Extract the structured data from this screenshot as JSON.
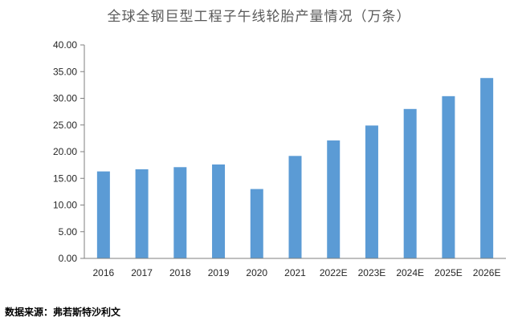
{
  "chart_data": {
    "type": "bar",
    "title": "全球全钢巨型工程子午线轮胎产量情况（万条）",
    "categories": [
      "2016",
      "2017",
      "2018",
      "2019",
      "2020",
      "2021",
      "2022E",
      "2023E",
      "2024E",
      "2025E",
      "2026E"
    ],
    "values": [
      16.3,
      16.7,
      17.1,
      17.6,
      13.0,
      19.2,
      22.1,
      24.9,
      28.0,
      30.4,
      33.8
    ],
    "y_ticks": [
      "0.00",
      "5.00",
      "10.00",
      "15.00",
      "20.00",
      "25.00",
      "30.00",
      "35.00",
      "40.00"
    ],
    "ylim": [
      0,
      40
    ],
    "xlabel": "",
    "ylabel": "",
    "grid": false,
    "bar_color": "#5B9BD5"
  },
  "source": "数据来源：弗若斯特沙利文"
}
